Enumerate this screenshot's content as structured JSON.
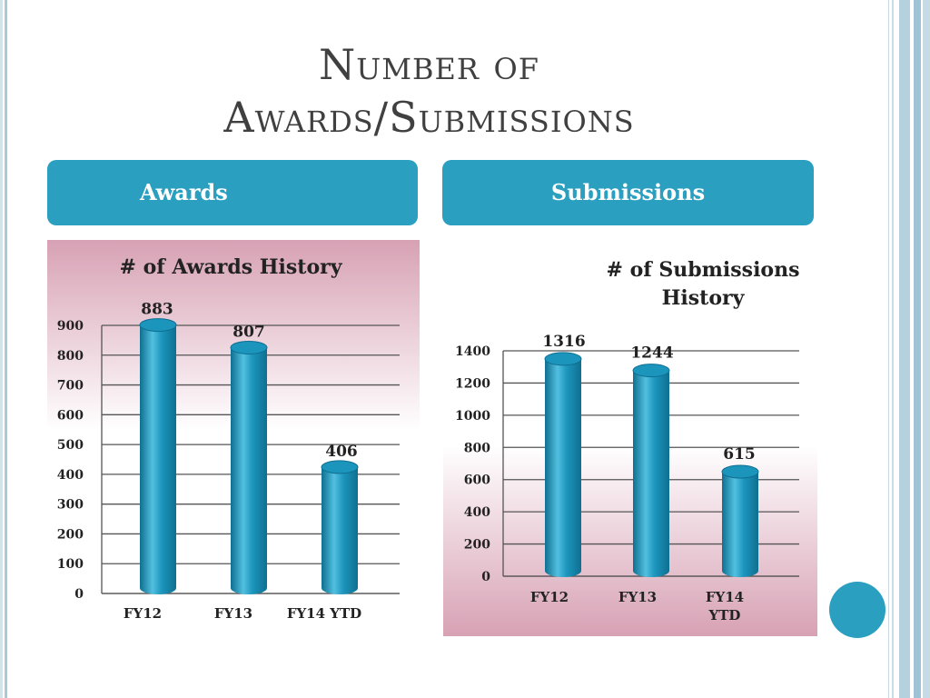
{
  "slide": {
    "title_line1": "Number of",
    "title_line2": "Awards/Submissions",
    "tabs": [
      {
        "label": "Awards"
      },
      {
        "label": "Submissions"
      }
    ]
  },
  "colors": {
    "accent": "#2a9fc0",
    "bar": "#1c95bd",
    "bar_dark": "#0f6f90",
    "bar_light": "#52c0e0",
    "panel_pink": "#d7a1b4",
    "frame": "#a9c9d8"
  },
  "chart_data": [
    {
      "type": "bar",
      "title": "# of Awards History",
      "categories": [
        "FY12",
        "FY13",
        "FY14 YTD"
      ],
      "values": [
        883,
        807,
        406
      ],
      "data_labels": [
        "883",
        "807",
        "406"
      ],
      "ylim": [
        0,
        900
      ],
      "yticks": [
        "0",
        "100",
        "200",
        "300",
        "400",
        "500",
        "600",
        "700",
        "800",
        "900"
      ],
      "ytick_values": [
        0,
        100,
        200,
        300,
        400,
        500,
        600,
        700,
        800,
        900
      ],
      "grid": true,
      "legend": "none"
    },
    {
      "type": "bar",
      "title_lines": [
        "# of Submissions",
        "History"
      ],
      "categories": [
        "FY12",
        "FY13",
        "FY14 YTD"
      ],
      "category_lines": [
        [
          "FY12"
        ],
        [
          "FY13"
        ],
        [
          "FY14",
          "YTD"
        ]
      ],
      "values": [
        1316,
        1244,
        615
      ],
      "data_labels": [
        "1316",
        "1244",
        "615"
      ],
      "ylim": [
        0,
        1400
      ],
      "yticks": [
        "0",
        "200",
        "400",
        "600",
        "800",
        "1000",
        "1200",
        "1400"
      ],
      "ytick_values": [
        0,
        200,
        400,
        600,
        800,
        1000,
        1200,
        1400
      ],
      "grid": true,
      "legend": "none"
    }
  ]
}
